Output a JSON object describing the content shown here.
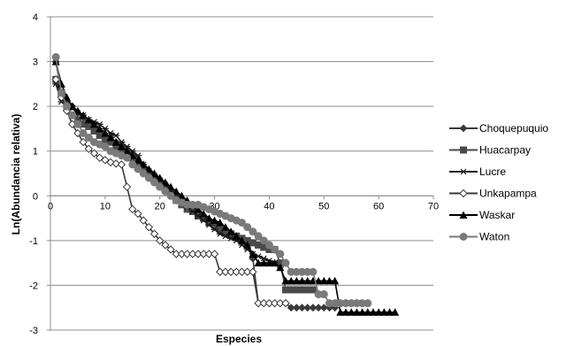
{
  "chart_data": {
    "type": "line",
    "title": "",
    "xlabel": "Especies",
    "ylabel": "Ln(Abundancia relativa)",
    "xlim": [
      0,
      70
    ],
    "ylim": [
      -3,
      4
    ],
    "x_ticks": [
      "0",
      "10",
      "20",
      "30",
      "40",
      "50",
      "60",
      "70"
    ],
    "y_ticks": [
      "4",
      "3",
      "2",
      "1",
      "0",
      "-1",
      "-2",
      "-3"
    ],
    "grid": "horizontal",
    "legend_position": "right",
    "series": [
      {
        "name": "Choquepuquio",
        "marker": "diamond",
        "color": "#3a3a3a",
        "points": [
          [
            1,
            3.0
          ],
          [
            2,
            2.3
          ],
          [
            3,
            2.1
          ],
          [
            4,
            2.0
          ],
          [
            5,
            1.85
          ],
          [
            6,
            1.75
          ],
          [
            7,
            1.6
          ],
          [
            8,
            1.5
          ],
          [
            9,
            1.45
          ],
          [
            10,
            1.35
          ],
          [
            11,
            1.3
          ],
          [
            12,
            1.2
          ],
          [
            13,
            1.1
          ],
          [
            14,
            1.0
          ],
          [
            15,
            0.9
          ],
          [
            16,
            0.75
          ],
          [
            17,
            0.6
          ],
          [
            18,
            0.5
          ],
          [
            19,
            0.4
          ],
          [
            20,
            0.3
          ],
          [
            21,
            0.2
          ],
          [
            22,
            0.1
          ],
          [
            23,
            0.0
          ],
          [
            24,
            -0.1
          ],
          [
            25,
            -0.2
          ],
          [
            26,
            -0.3
          ],
          [
            27,
            -0.4
          ],
          [
            28,
            -0.5
          ],
          [
            29,
            -0.6
          ],
          [
            30,
            -0.7
          ],
          [
            31,
            -0.8
          ],
          [
            32,
            -0.85
          ],
          [
            33,
            -0.9
          ],
          [
            34,
            -0.95
          ],
          [
            35,
            -1.0
          ],
          [
            36,
            -1.1
          ],
          [
            37,
            -1.4
          ],
          [
            38,
            -2.4
          ],
          [
            39,
            -2.4
          ],
          [
            40,
            -2.4
          ],
          [
            41,
            -2.4
          ],
          [
            42,
            -2.4
          ],
          [
            43,
            -2.4
          ],
          [
            44,
            -2.5
          ],
          [
            45,
            -2.5
          ],
          [
            46,
            -2.5
          ],
          [
            47,
            -2.5
          ],
          [
            48,
            -2.5
          ],
          [
            49,
            -2.5
          ],
          [
            50,
            -2.5
          ],
          [
            51,
            -2.5
          ],
          [
            52,
            -2.5
          ]
        ]
      },
      {
        "name": "Huacarpay",
        "marker": "square",
        "color": "#4a4a4a",
        "points": [
          [
            1,
            2.6
          ],
          [
            2,
            2.3
          ],
          [
            3,
            2.0
          ],
          [
            4,
            1.8
          ],
          [
            5,
            1.7
          ],
          [
            6,
            1.6
          ],
          [
            7,
            1.55
          ],
          [
            8,
            1.45
          ],
          [
            9,
            1.35
          ],
          [
            10,
            1.25
          ],
          [
            11,
            1.2
          ],
          [
            12,
            1.1
          ],
          [
            13,
            1.0
          ],
          [
            14,
            0.95
          ],
          [
            15,
            0.85
          ],
          [
            16,
            0.75
          ],
          [
            17,
            0.6
          ],
          [
            18,
            0.5
          ],
          [
            19,
            0.4
          ],
          [
            20,
            0.3
          ],
          [
            21,
            0.2
          ],
          [
            22,
            0.05
          ],
          [
            23,
            -0.1
          ],
          [
            24,
            -0.2
          ],
          [
            25,
            -0.3
          ],
          [
            26,
            -0.35
          ],
          [
            27,
            -0.45
          ],
          [
            28,
            -0.5
          ],
          [
            29,
            -0.6
          ],
          [
            30,
            -0.65
          ],
          [
            31,
            -0.7
          ],
          [
            32,
            -0.8
          ],
          [
            33,
            -0.85
          ],
          [
            34,
            -0.9
          ],
          [
            35,
            -0.95
          ],
          [
            36,
            -1.0
          ],
          [
            37,
            -1.05
          ],
          [
            38,
            -1.1
          ],
          [
            39,
            -1.15
          ],
          [
            40,
            -1.2
          ],
          [
            41,
            -1.2
          ],
          [
            42,
            -1.5
          ],
          [
            43,
            -2.1
          ],
          [
            44,
            -2.1
          ],
          [
            45,
            -2.1
          ],
          [
            46,
            -2.1
          ],
          [
            47,
            -2.1
          ],
          [
            48,
            -2.1
          ]
        ]
      },
      {
        "name": "Lucre",
        "marker": "asterisk",
        "color": "#1a1a1a",
        "points": [
          [
            1,
            2.5
          ],
          [
            2,
            2.1
          ],
          [
            3,
            2.0
          ],
          [
            4,
            1.95
          ],
          [
            5,
            1.85
          ],
          [
            6,
            1.8
          ],
          [
            7,
            1.7
          ],
          [
            8,
            1.65
          ],
          [
            9,
            1.6
          ],
          [
            10,
            1.5
          ],
          [
            11,
            1.4
          ],
          [
            12,
            1.35
          ],
          [
            13,
            1.2
          ],
          [
            14,
            1.1
          ],
          [
            15,
            1.0
          ],
          [
            16,
            0.9
          ],
          [
            17,
            0.7
          ],
          [
            18,
            0.55
          ],
          [
            19,
            0.45
          ],
          [
            20,
            0.35
          ],
          [
            21,
            0.25
          ],
          [
            22,
            0.1
          ],
          [
            23,
            -0.05
          ],
          [
            24,
            -0.15
          ],
          [
            25,
            -0.25
          ],
          [
            26,
            -0.35
          ],
          [
            27,
            -0.45
          ],
          [
            28,
            -0.55
          ],
          [
            29,
            -0.65
          ],
          [
            30,
            -0.75
          ],
          [
            31,
            -0.85
          ],
          [
            32,
            -0.9
          ],
          [
            33,
            -0.95
          ],
          [
            34,
            -1.0
          ],
          [
            35,
            -1.1
          ],
          [
            36,
            -1.2
          ],
          [
            37,
            -1.3
          ],
          [
            38,
            -1.35
          ],
          [
            39,
            -1.4
          ],
          [
            40,
            -1.45
          ],
          [
            41,
            -1.5
          ],
          [
            42,
            -1.6
          ]
        ]
      },
      {
        "name": "Unkapampa",
        "marker": "open-diamond",
        "color": "#3a3a3a",
        "points": [
          [
            1,
            2.6
          ],
          [
            2,
            2.2
          ],
          [
            3,
            1.9
          ],
          [
            4,
            1.6
          ],
          [
            5,
            1.4
          ],
          [
            6,
            1.2
          ],
          [
            7,
            1.05
          ],
          [
            8,
            0.95
          ],
          [
            9,
            0.85
          ],
          [
            10,
            0.8
          ],
          [
            11,
            0.75
          ],
          [
            12,
            0.72
          ],
          [
            13,
            0.7
          ],
          [
            14,
            0.2
          ],
          [
            15,
            -0.3
          ],
          [
            16,
            -0.4
          ],
          [
            17,
            -0.55
          ],
          [
            18,
            -0.7
          ],
          [
            19,
            -0.85
          ],
          [
            20,
            -1.0
          ],
          [
            21,
            -1.1
          ],
          [
            22,
            -1.2
          ],
          [
            23,
            -1.3
          ],
          [
            24,
            -1.3
          ],
          [
            25,
            -1.3
          ],
          [
            26,
            -1.3
          ],
          [
            27,
            -1.3
          ],
          [
            28,
            -1.3
          ],
          [
            29,
            -1.3
          ],
          [
            30,
            -1.3
          ],
          [
            31,
            -1.7
          ],
          [
            32,
            -1.7
          ],
          [
            33,
            -1.7
          ],
          [
            34,
            -1.7
          ],
          [
            35,
            -1.7
          ],
          [
            36,
            -1.7
          ],
          [
            37,
            -1.7
          ],
          [
            38,
            -2.4
          ],
          [
            39,
            -2.4
          ],
          [
            40,
            -2.4
          ],
          [
            41,
            -2.4
          ],
          [
            42,
            -2.4
          ],
          [
            43,
            -2.4
          ]
        ]
      },
      {
        "name": "Waskar",
        "marker": "triangle",
        "color": "#000000",
        "points": [
          [
            1,
            3.0
          ],
          [
            2,
            2.5
          ],
          [
            3,
            2.2
          ],
          [
            4,
            2.0
          ],
          [
            5,
            1.9
          ],
          [
            6,
            1.8
          ],
          [
            7,
            1.7
          ],
          [
            8,
            1.6
          ],
          [
            9,
            1.5
          ],
          [
            10,
            1.4
          ],
          [
            11,
            1.3
          ],
          [
            12,
            1.2
          ],
          [
            13,
            1.1
          ],
          [
            14,
            1.0
          ],
          [
            15,
            0.9
          ],
          [
            16,
            0.8
          ],
          [
            17,
            0.7
          ],
          [
            18,
            0.6
          ],
          [
            19,
            0.5
          ],
          [
            20,
            0.4
          ],
          [
            21,
            0.3
          ],
          [
            22,
            0.2
          ],
          [
            23,
            0.1
          ],
          [
            24,
            0.0
          ],
          [
            25,
            -0.1
          ],
          [
            26,
            -0.2
          ],
          [
            27,
            -0.3
          ],
          [
            28,
            -0.4
          ],
          [
            29,
            -0.5
          ],
          [
            30,
            -0.55
          ],
          [
            31,
            -0.6
          ],
          [
            32,
            -0.7
          ],
          [
            33,
            -0.8
          ],
          [
            34,
            -0.9
          ],
          [
            35,
            -1.0
          ],
          [
            36,
            -1.1
          ],
          [
            37,
            -1.3
          ],
          [
            38,
            -1.5
          ],
          [
            39,
            -1.5
          ],
          [
            40,
            -1.5
          ],
          [
            41,
            -1.5
          ],
          [
            42,
            -1.6
          ],
          [
            43,
            -1.9
          ],
          [
            44,
            -1.9
          ],
          [
            45,
            -1.9
          ],
          [
            46,
            -1.9
          ],
          [
            47,
            -1.9
          ],
          [
            48,
            -1.9
          ],
          [
            49,
            -1.9
          ],
          [
            50,
            -1.9
          ],
          [
            51,
            -1.9
          ],
          [
            52,
            -1.9
          ],
          [
            53,
            -2.6
          ],
          [
            54,
            -2.6
          ],
          [
            55,
            -2.6
          ],
          [
            56,
            -2.6
          ],
          [
            57,
            -2.6
          ],
          [
            58,
            -2.6
          ],
          [
            59,
            -2.6
          ],
          [
            60,
            -2.6
          ],
          [
            61,
            -2.6
          ],
          [
            62,
            -2.6
          ],
          [
            63,
            -2.6
          ]
        ]
      },
      {
        "name": "Waton",
        "marker": "circle",
        "color": "#7a7a7a",
        "points": [
          [
            1,
            3.1
          ],
          [
            2,
            2.3
          ],
          [
            3,
            2.0
          ],
          [
            4,
            1.8
          ],
          [
            5,
            1.6
          ],
          [
            6,
            1.4
          ],
          [
            7,
            1.3
          ],
          [
            8,
            1.2
          ],
          [
            9,
            1.15
          ],
          [
            10,
            1.1
          ],
          [
            11,
            1.0
          ],
          [
            12,
            0.95
          ],
          [
            13,
            0.9
          ],
          [
            14,
            0.85
          ],
          [
            15,
            0.7
          ],
          [
            16,
            0.6
          ],
          [
            17,
            0.5
          ],
          [
            18,
            0.4
          ],
          [
            19,
            0.3
          ],
          [
            20,
            0.2
          ],
          [
            21,
            0.1
          ],
          [
            22,
            0.0
          ],
          [
            23,
            -0.1
          ],
          [
            24,
            -0.15
          ],
          [
            25,
            -0.2
          ],
          [
            26,
            -0.2
          ],
          [
            27,
            -0.2
          ],
          [
            28,
            -0.25
          ],
          [
            29,
            -0.3
          ],
          [
            30,
            -0.35
          ],
          [
            31,
            -0.4
          ],
          [
            32,
            -0.45
          ],
          [
            33,
            -0.5
          ],
          [
            34,
            -0.55
          ],
          [
            35,
            -0.6
          ],
          [
            36,
            -0.7
          ],
          [
            37,
            -0.8
          ],
          [
            38,
            -0.9
          ],
          [
            39,
            -1.0
          ],
          [
            40,
            -1.1
          ],
          [
            41,
            -1.2
          ],
          [
            42,
            -1.3
          ],
          [
            43,
            -1.5
          ],
          [
            44,
            -1.7
          ],
          [
            45,
            -1.7
          ],
          [
            46,
            -1.7
          ],
          [
            47,
            -1.7
          ],
          [
            48,
            -1.7
          ],
          [
            49,
            -2.2
          ],
          [
            50,
            -2.2
          ],
          [
            51,
            -2.4
          ],
          [
            52,
            -2.4
          ],
          [
            53,
            -2.4
          ],
          [
            54,
            -2.4
          ],
          [
            55,
            -2.4
          ],
          [
            56,
            -2.4
          ],
          [
            57,
            -2.4
          ],
          [
            58,
            -2.4
          ]
        ]
      }
    ]
  }
}
